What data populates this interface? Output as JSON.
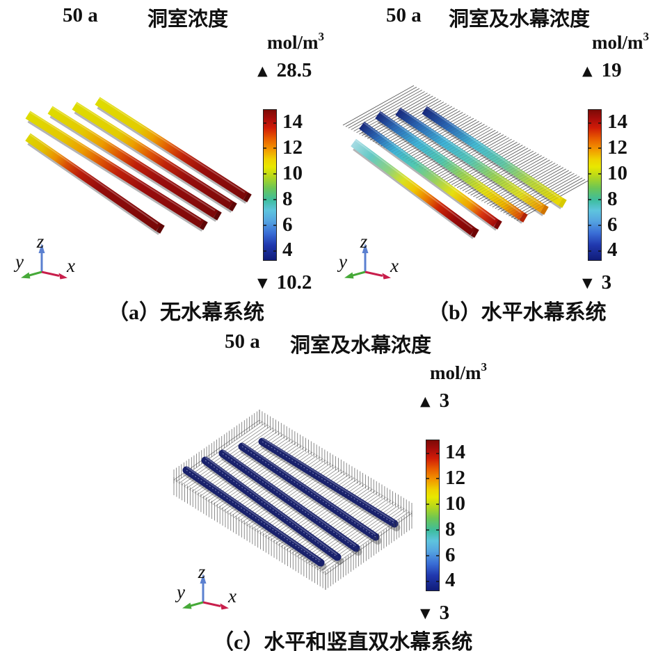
{
  "figure": {
    "marker_up": "▲",
    "marker_down": "▼",
    "background": "#ffffff"
  },
  "chart_data": {
    "type": "3d-surface",
    "description": "Three COMSOL-style 3D concentration plots of five parallel storage caverns with/without water curtain systems at time 50 a",
    "unit_base": "mol/m",
    "unit_exponent": "3",
    "unit_display": "mol/m³",
    "colorbar_ticks": [
      "14",
      "12",
      "10",
      "8",
      "6",
      "4"
    ],
    "colorbar_value_range": [
      3,
      15
    ],
    "colorbar_gradient_stops": [
      [
        0,
        "#7c0a06"
      ],
      [
        0.06,
        "#a80d0b"
      ],
      [
        0.12,
        "#d01c07"
      ],
      [
        0.19,
        "#e85c00"
      ],
      [
        0.26,
        "#f29500"
      ],
      [
        0.33,
        "#efd300"
      ],
      [
        0.38,
        "#e8e800"
      ],
      [
        0.44,
        "#b8d81a"
      ],
      [
        0.52,
        "#6cc655"
      ],
      [
        0.6,
        "#3ebd9e"
      ],
      [
        0.67,
        "#5ec4de"
      ],
      [
        0.74,
        "#55a4e0"
      ],
      [
        0.82,
        "#3a6ed6"
      ],
      [
        0.9,
        "#2038ae"
      ],
      [
        1,
        "#101c78"
      ]
    ],
    "axis_triad": {
      "x": "x",
      "y": "y",
      "z": "z",
      "x_color": "#c81e4b",
      "y_color": "#46a938",
      "z_color": "#5b80d0"
    },
    "panels": [
      {
        "id": "a",
        "time_label": "50 a",
        "title": "洞室浓度",
        "colorbar_max": "28.5",
        "colorbar_min": "10.2",
        "caption": "（a）无水幕系统",
        "scene": "Five caverns, yellow (~10) at far ends grading to dark red (~14.5) at near ends",
        "bar_cap_color": "#5e0606",
        "bar_gradient_back": [
          [
            0,
            "#dedc00"
          ],
          [
            0.28,
            "#e2cc00"
          ],
          [
            0.38,
            "#ec9e00"
          ],
          [
            0.48,
            "#e05804"
          ],
          [
            0.58,
            "#c02309"
          ],
          [
            0.72,
            "#970d0b"
          ],
          [
            1,
            "#7a0808"
          ]
        ],
        "bar_gradient_mid": [
          [
            0,
            "#dedc00"
          ],
          [
            0.2,
            "#e4c800"
          ],
          [
            0.32,
            "#ec9a00"
          ],
          [
            0.42,
            "#dd5404"
          ],
          [
            0.52,
            "#bf1f09"
          ],
          [
            0.66,
            "#9a0d0c"
          ],
          [
            1,
            "#7b0808"
          ]
        ],
        "bar_gradient_front": [
          [
            0,
            "#dcd600"
          ],
          [
            0.12,
            "#e2c000"
          ],
          [
            0.22,
            "#ea8e00"
          ],
          [
            0.3,
            "#d84e05"
          ],
          [
            0.4,
            "#bb1d0a"
          ],
          [
            0.55,
            "#940c0b"
          ],
          [
            1,
            "#770707"
          ]
        ]
      },
      {
        "id": "b",
        "time_label": "50 a",
        "title": "洞室及水幕浓度",
        "colorbar_max": "19",
        "colorbar_min": "3",
        "caption": "（b）水平水幕系统",
        "scene": "Horizontal water-curtain comb of boreholes above five caverns; dark blue far ends grading through cyan/green/yellow to red near ends",
        "curtain_color": "#4a4a4a",
        "bar_cap_colors": [
          "#6e0505",
          "#7c0707",
          "#b52306",
          "#d07400",
          "#d8ca00"
        ],
        "bar_gradients": [
          [
            [
              0,
              "#a6dbe4"
            ],
            [
              0.15,
              "#63c9c4"
            ],
            [
              0.3,
              "#8ed17e"
            ],
            [
              0.42,
              "#d8e020"
            ],
            [
              0.52,
              "#f0c400"
            ],
            [
              0.62,
              "#ea7a00"
            ],
            [
              0.72,
              "#cc2405"
            ],
            [
              0.85,
              "#980909"
            ],
            [
              1,
              "#7a0606"
            ]
          ],
          [
            [
              0,
              "#16277e"
            ],
            [
              0.12,
              "#2a6ab8"
            ],
            [
              0.25,
              "#3fb4d8"
            ],
            [
              0.4,
              "#52c8b0"
            ],
            [
              0.55,
              "#98d060"
            ],
            [
              0.68,
              "#e6e010"
            ],
            [
              0.8,
              "#f0a400"
            ],
            [
              0.9,
              "#d83410"
            ],
            [
              1,
              "#a00a0a"
            ]
          ],
          [
            [
              0,
              "#16277e"
            ],
            [
              0.12,
              "#2a6ab8"
            ],
            [
              0.28,
              "#3fb4d8"
            ],
            [
              0.45,
              "#52c8b0"
            ],
            [
              0.6,
              "#a0d450"
            ],
            [
              0.75,
              "#e6e010"
            ],
            [
              0.88,
              "#f0b400"
            ],
            [
              1,
              "#dd4708"
            ]
          ],
          [
            [
              0,
              "#16277e"
            ],
            [
              0.15,
              "#2a6ab8"
            ],
            [
              0.32,
              "#3fb4d8"
            ],
            [
              0.5,
              "#58c8b8"
            ],
            [
              0.68,
              "#a0d450"
            ],
            [
              0.85,
              "#e2e020"
            ],
            [
              1,
              "#f09400"
            ]
          ],
          [
            [
              0,
              "#16277e"
            ],
            [
              0.18,
              "#2a6ab8"
            ],
            [
              0.38,
              "#45bcd4"
            ],
            [
              0.58,
              "#62c8a8"
            ],
            [
              0.78,
              "#b8d840"
            ],
            [
              1,
              "#ecd800"
            ]
          ]
        ]
      },
      {
        "id": "c",
        "time_label": "50 a",
        "title": "洞室及水幕浓度",
        "colorbar_max": "3",
        "colorbar_min": "3",
        "caption": "（c）水平和竖直双水幕系统",
        "scene": "Horizontal curtain floor plus vertical curtain fence around perimeter; all five caverns uniform dark navy (~3)",
        "bar_color": "#19216b",
        "curtain_color": "#666666",
        "fence_color": "#4a4a4a"
      }
    ]
  }
}
